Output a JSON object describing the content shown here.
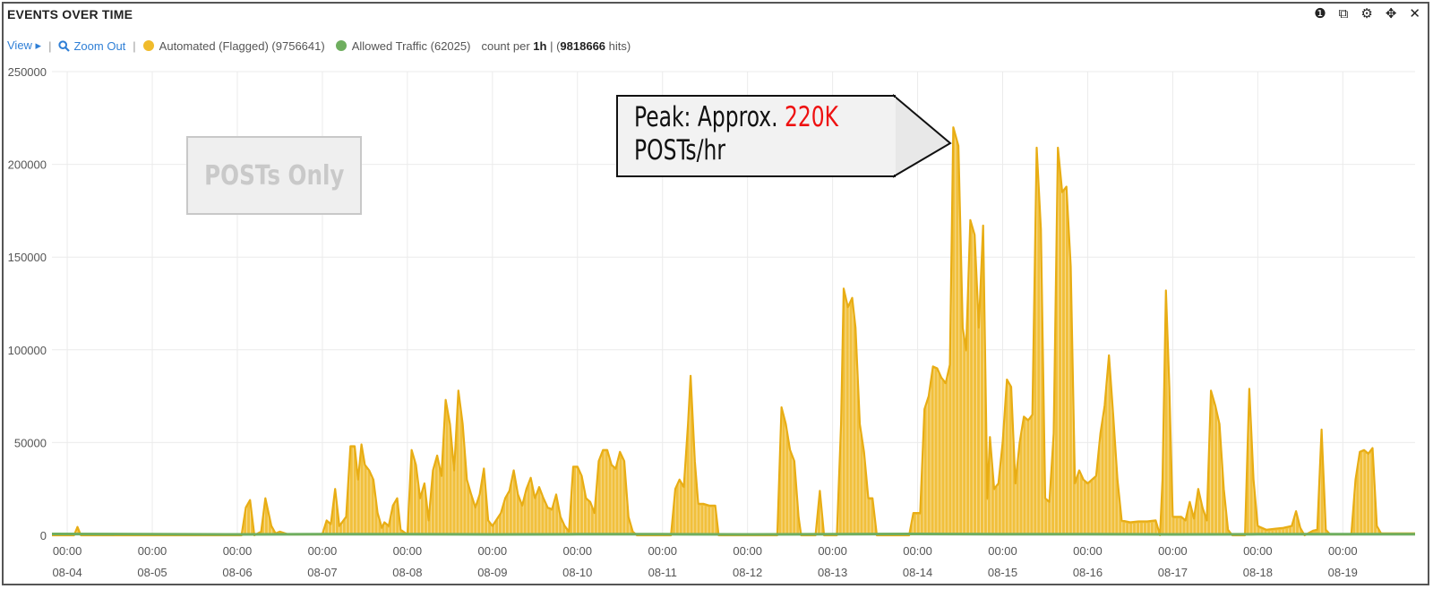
{
  "panel": {
    "title": "EVENTS OVER TIME",
    "icons": [
      "info-icon",
      "duplicate-icon",
      "gear-icon",
      "move-icon",
      "close-icon"
    ],
    "icon_glyphs": [
      "❶",
      "⧉",
      "⚙",
      "✥",
      "✕"
    ]
  },
  "legend": {
    "view_label": "View ▸",
    "zoom_label": "Zoom Out",
    "separator": "|",
    "count_per_prefix": "count per",
    "interval": "1h",
    "hits_open": "| (",
    "total_hits": "9818666",
    "hits_close": "hits)"
  },
  "annotations": {
    "note": "POSTs Only",
    "callout_prefix": "Peak: Approx.",
    "callout_value": "220K",
    "callout_suffix": "POSTs/hr"
  },
  "colors": {
    "automated": "#f0bb2b",
    "allowed": "#6fae5f",
    "grid": "#ebebeb",
    "link": "#2f7fd6",
    "callout_red": "#ee1111"
  },
  "chart_data": {
    "type": "area",
    "title": "EVENTS OVER TIME",
    "xlabel": "",
    "ylabel": "",
    "ylim": [
      0,
      250000
    ],
    "yticks": [
      0,
      50000,
      100000,
      150000,
      200000,
      250000
    ],
    "ytick_labels": [
      "0",
      "50000",
      "100000",
      "150000",
      "200000",
      "250000"
    ],
    "xlim": [
      -0.18,
      15.85
    ],
    "x_ticks": [
      {
        "pos": 0,
        "time": "00:00",
        "date": "08-04"
      },
      {
        "pos": 1,
        "time": "00:00",
        "date": "08-05"
      },
      {
        "pos": 2,
        "time": "00:00",
        "date": "08-06"
      },
      {
        "pos": 3,
        "time": "00:00",
        "date": "08-07"
      },
      {
        "pos": 4,
        "time": "00:00",
        "date": "08-08"
      },
      {
        "pos": 5,
        "time": "00:00",
        "date": "08-09"
      },
      {
        "pos": 6,
        "time": "00:00",
        "date": "08-10"
      },
      {
        "pos": 7,
        "time": "00:00",
        "date": "08-11"
      },
      {
        "pos": 8,
        "time": "00:00",
        "date": "08-12"
      },
      {
        "pos": 9,
        "time": "00:00",
        "date": "08-13"
      },
      {
        "pos": 10,
        "time": "00:00",
        "date": "08-14"
      },
      {
        "pos": 11,
        "time": "00:00",
        "date": "08-15"
      },
      {
        "pos": 12,
        "time": "00:00",
        "date": "08-16"
      },
      {
        "pos": 13,
        "time": "00:00",
        "date": "08-17"
      },
      {
        "pos": 14,
        "time": "00:00",
        "date": "08-18"
      },
      {
        "pos": 15,
        "time": "00:00",
        "date": "08-19"
      }
    ],
    "series": [
      {
        "name": "Automated (Flagged)",
        "total": "9756641",
        "color": "#f0bb2b",
        "points": [
          [
            -0.18,
            0
          ],
          [
            0.08,
            0
          ],
          [
            0.12,
            4500
          ],
          [
            0.16,
            0
          ],
          [
            2.05,
            0
          ],
          [
            2.1,
            15000
          ],
          [
            2.15,
            19000
          ],
          [
            2.2,
            0
          ],
          [
            2.28,
            2000
          ],
          [
            2.33,
            20000
          ],
          [
            2.4,
            5000
          ],
          [
            2.45,
            1000
          ],
          [
            2.5,
            2000
          ],
          [
            2.6,
            500
          ],
          [
            3.0,
            500
          ],
          [
            3.05,
            8000
          ],
          [
            3.1,
            6000
          ],
          [
            3.15,
            25000
          ],
          [
            3.2,
            5000
          ],
          [
            3.28,
            10000
          ],
          [
            3.33,
            48000
          ],
          [
            3.38,
            48000
          ],
          [
            3.42,
            30000
          ],
          [
            3.46,
            49000
          ],
          [
            3.5,
            38000
          ],
          [
            3.55,
            35000
          ],
          [
            3.6,
            30000
          ],
          [
            3.65,
            12000
          ],
          [
            3.7,
            4000
          ],
          [
            3.73,
            7000
          ],
          [
            3.78,
            5000
          ],
          [
            3.83,
            16000
          ],
          [
            3.88,
            20000
          ],
          [
            3.92,
            3000
          ],
          [
            4.0,
            500
          ],
          [
            4.05,
            46000
          ],
          [
            4.1,
            38000
          ],
          [
            4.15,
            20000
          ],
          [
            4.2,
            28000
          ],
          [
            4.25,
            8000
          ],
          [
            4.3,
            35000
          ],
          [
            4.35,
            43000
          ],
          [
            4.4,
            32000
          ],
          [
            4.45,
            73000
          ],
          [
            4.5,
            60000
          ],
          [
            4.55,
            35000
          ],
          [
            4.6,
            78000
          ],
          [
            4.65,
            60000
          ],
          [
            4.7,
            30000
          ],
          [
            4.75,
            22000
          ],
          [
            4.8,
            15000
          ],
          [
            4.85,
            22000
          ],
          [
            4.9,
            36000
          ],
          [
            4.95,
            8000
          ],
          [
            5.0,
            5000
          ],
          [
            5.1,
            12000
          ],
          [
            5.15,
            20000
          ],
          [
            5.2,
            24000
          ],
          [
            5.25,
            35000
          ],
          [
            5.3,
            22000
          ],
          [
            5.35,
            16000
          ],
          [
            5.4,
            25000
          ],
          [
            5.45,
            31000
          ],
          [
            5.5,
            20000
          ],
          [
            5.55,
            26000
          ],
          [
            5.6,
            20000
          ],
          [
            5.65,
            15000
          ],
          [
            5.7,
            14000
          ],
          [
            5.75,
            22000
          ],
          [
            5.8,
            10000
          ],
          [
            5.85,
            5000
          ],
          [
            5.9,
            2000
          ],
          [
            5.95,
            37000
          ],
          [
            6.0,
            37000
          ],
          [
            6.05,
            32000
          ],
          [
            6.1,
            20000
          ],
          [
            6.15,
            18000
          ],
          [
            6.2,
            12000
          ],
          [
            6.25,
            40000
          ],
          [
            6.3,
            46000
          ],
          [
            6.35,
            46000
          ],
          [
            6.4,
            38000
          ],
          [
            6.45,
            36000
          ],
          [
            6.5,
            45000
          ],
          [
            6.55,
            40000
          ],
          [
            6.6,
            10000
          ],
          [
            6.65,
            2000
          ],
          [
            6.7,
            0
          ],
          [
            7.1,
            0
          ],
          [
            7.15,
            25000
          ],
          [
            7.2,
            30000
          ],
          [
            7.25,
            26000
          ],
          [
            7.3,
            60000
          ],
          [
            7.33,
            86000
          ],
          [
            7.38,
            40000
          ],
          [
            7.42,
            17000
          ],
          [
            7.48,
            17000
          ],
          [
            7.55,
            16000
          ],
          [
            7.62,
            16000
          ],
          [
            7.66,
            0
          ],
          [
            8.35,
            0
          ],
          [
            8.4,
            69000
          ],
          [
            8.45,
            60000
          ],
          [
            8.5,
            46000
          ],
          [
            8.55,
            40000
          ],
          [
            8.6,
            10000
          ],
          [
            8.63,
            0
          ],
          [
            8.8,
            0
          ],
          [
            8.85,
            24000
          ],
          [
            8.9,
            0
          ],
          [
            9.05,
            0
          ],
          [
            9.1,
            60000
          ],
          [
            9.13,
            133000
          ],
          [
            9.18,
            123000
          ],
          [
            9.23,
            128000
          ],
          [
            9.27,
            112000
          ],
          [
            9.32,
            60000
          ],
          [
            9.37,
            45000
          ],
          [
            9.42,
            20000
          ],
          [
            9.47,
            20000
          ],
          [
            9.52,
            0
          ],
          [
            9.9,
            0
          ],
          [
            9.95,
            12000
          ],
          [
            10.03,
            12000
          ],
          [
            10.08,
            68000
          ],
          [
            10.13,
            75000
          ],
          [
            10.18,
            91000
          ],
          [
            10.23,
            90000
          ],
          [
            10.28,
            85000
          ],
          [
            10.33,
            82000
          ],
          [
            10.38,
            92000
          ],
          [
            10.42,
            220000
          ],
          [
            10.48,
            210000
          ],
          [
            10.53,
            112000
          ],
          [
            10.57,
            100000
          ],
          [
            10.62,
            170000
          ],
          [
            10.67,
            162000
          ],
          [
            10.72,
            112000
          ],
          [
            10.77,
            167000
          ],
          [
            10.82,
            20000
          ],
          [
            10.85,
            53000
          ],
          [
            10.9,
            25000
          ],
          [
            10.95,
            28000
          ],
          [
            11.0,
            50000
          ],
          [
            11.05,
            84000
          ],
          [
            11.1,
            80000
          ],
          [
            11.15,
            28000
          ],
          [
            11.2,
            50000
          ],
          [
            11.25,
            64000
          ],
          [
            11.3,
            62000
          ],
          [
            11.35,
            65000
          ],
          [
            11.4,
            209000
          ],
          [
            11.45,
            165000
          ],
          [
            11.5,
            20000
          ],
          [
            11.55,
            18000
          ],
          [
            11.6,
            55000
          ],
          [
            11.65,
            209000
          ],
          [
            11.7,
            185000
          ],
          [
            11.75,
            188000
          ],
          [
            11.8,
            145000
          ],
          [
            11.85,
            28000
          ],
          [
            11.9,
            35000
          ],
          [
            11.95,
            30000
          ],
          [
            12.0,
            28000
          ],
          [
            12.05,
            30000
          ],
          [
            12.1,
            32000
          ],
          [
            12.15,
            55000
          ],
          [
            12.2,
            70000
          ],
          [
            12.25,
            97000
          ],
          [
            12.3,
            65000
          ],
          [
            12.35,
            30000
          ],
          [
            12.4,
            8000
          ],
          [
            12.5,
            7000
          ],
          [
            12.6,
            7500
          ],
          [
            12.7,
            7500
          ],
          [
            12.8,
            8000
          ],
          [
            12.85,
            0
          ],
          [
            12.88,
            30000
          ],
          [
            12.92,
            132000
          ],
          [
            12.96,
            80000
          ],
          [
            13.0,
            10000
          ],
          [
            13.1,
            10000
          ],
          [
            13.15,
            8000
          ],
          [
            13.2,
            18000
          ],
          [
            13.25,
            9000
          ],
          [
            13.3,
            25000
          ],
          [
            13.35,
            15000
          ],
          [
            13.4,
            8000
          ],
          [
            13.45,
            78000
          ],
          [
            13.5,
            70000
          ],
          [
            13.55,
            60000
          ],
          [
            13.6,
            25000
          ],
          [
            13.65,
            3000
          ],
          [
            13.7,
            0
          ],
          [
            13.85,
            0
          ],
          [
            13.9,
            79000
          ],
          [
            13.95,
            30000
          ],
          [
            14.0,
            5000
          ],
          [
            14.1,
            3000
          ],
          [
            14.2,
            3500
          ],
          [
            14.3,
            4000
          ],
          [
            14.4,
            5000
          ],
          [
            14.45,
            13000
          ],
          [
            14.5,
            4000
          ],
          [
            14.55,
            0
          ],
          [
            14.65,
            2500
          ],
          [
            14.7,
            3000
          ],
          [
            14.75,
            57000
          ],
          [
            14.8,
            3000
          ],
          [
            14.85,
            500
          ],
          [
            15.1,
            500
          ],
          [
            15.15,
            30000
          ],
          [
            15.2,
            45000
          ],
          [
            15.25,
            46000
          ],
          [
            15.3,
            44000
          ],
          [
            15.35,
            47000
          ],
          [
            15.4,
            5000
          ],
          [
            15.45,
            1000
          ],
          [
            15.85,
            1000
          ]
        ]
      },
      {
        "name": "Allowed Traffic",
        "total": "62025",
        "color": "#6fae5f",
        "points": [
          [
            -0.18,
            700
          ],
          [
            1.0,
            600
          ],
          [
            2.0,
            500
          ],
          [
            3.0,
            600
          ],
          [
            4.0,
            600
          ],
          [
            5.0,
            500
          ],
          [
            6.0,
            600
          ],
          [
            7.0,
            600
          ],
          [
            8.0,
            500
          ],
          [
            9.0,
            600
          ],
          [
            10.0,
            700
          ],
          [
            11.0,
            600
          ],
          [
            12.0,
            600
          ],
          [
            13.0,
            500
          ],
          [
            14.0,
            600
          ],
          [
            15.0,
            600
          ],
          [
            15.85,
            600
          ]
        ]
      }
    ]
  }
}
